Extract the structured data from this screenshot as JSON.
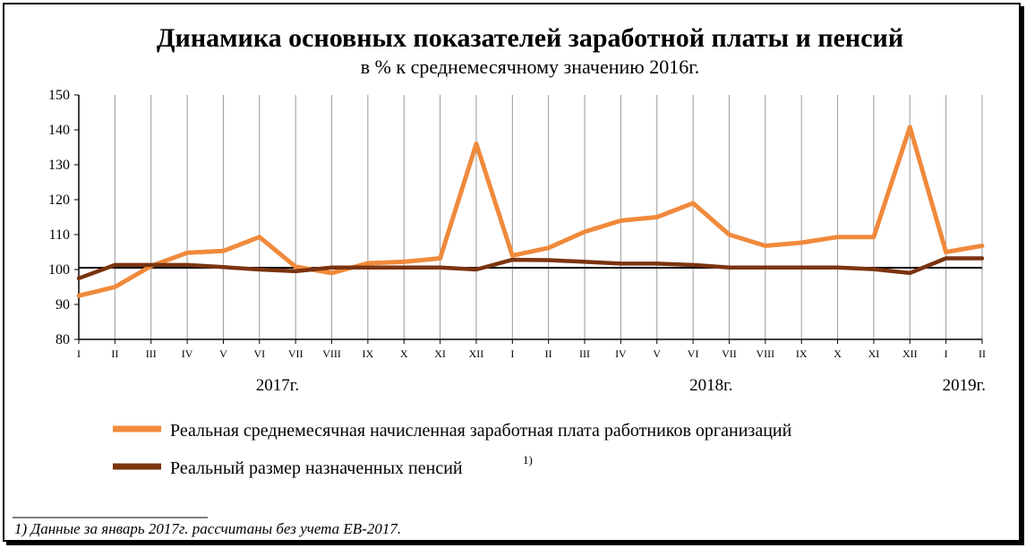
{
  "chart_data": {
    "type": "line",
    "title": "Динамика основных показателей заработной платы и пенсий",
    "subtitle": "в % к среднемесячному значению 2016г.",
    "ylim": [
      80,
      150
    ],
    "yticks": [
      "80",
      "90",
      "100",
      "110",
      "120",
      "130",
      "140",
      "150"
    ],
    "categories": [
      "I",
      "II",
      "III",
      "IV",
      "V",
      "VI",
      "VII",
      "VIII",
      "IX",
      "X",
      "XI",
      "XII",
      "I",
      "II",
      "III",
      "IV",
      "V",
      "VI",
      "VII",
      "VIII",
      "IX",
      "X",
      "XI",
      "XII",
      "I",
      "II"
    ],
    "year_labels": [
      {
        "label": "2017г.",
        "center_index": 5.5
      },
      {
        "label": "2018г.",
        "center_index": 17.5
      },
      {
        "label": "2019г.",
        "center_index": 24.5
      }
    ],
    "reference_line": 100.5,
    "grid": "vertical",
    "series": [
      {
        "name": "Реальная среднемесячная начисленная заработная плата работников организаций",
        "color": "#F08A3C",
        "values": [
          92.5,
          95,
          101,
          104.8,
          105.3,
          109.3,
          100.8,
          99,
          101.8,
          102.2,
          103.2,
          136,
          104,
          106.2,
          110.8,
          114,
          115,
          119,
          110,
          106.8,
          107.7,
          109.3,
          109.3,
          140.8,
          105,
          106.8
        ]
      },
      {
        "name": "Реальный размер назначенных пенсий",
        "note_marker": "1)",
        "color": "#7B3410",
        "values": [
          97.5,
          101.3,
          101.3,
          101.3,
          100.7,
          100,
          99.5,
          100.6,
          100.6,
          100.6,
          100.6,
          100,
          102.8,
          102.7,
          102.2,
          101.7,
          101.7,
          101.3,
          100.6,
          100.6,
          100.6,
          100.6,
          100.1,
          99,
          103.2,
          103.2
        ]
      }
    ],
    "legend_position": "bottom",
    "footnote": "1) Данные за январь 2017г. рассчитаны без учета ЕВ-2017."
  }
}
